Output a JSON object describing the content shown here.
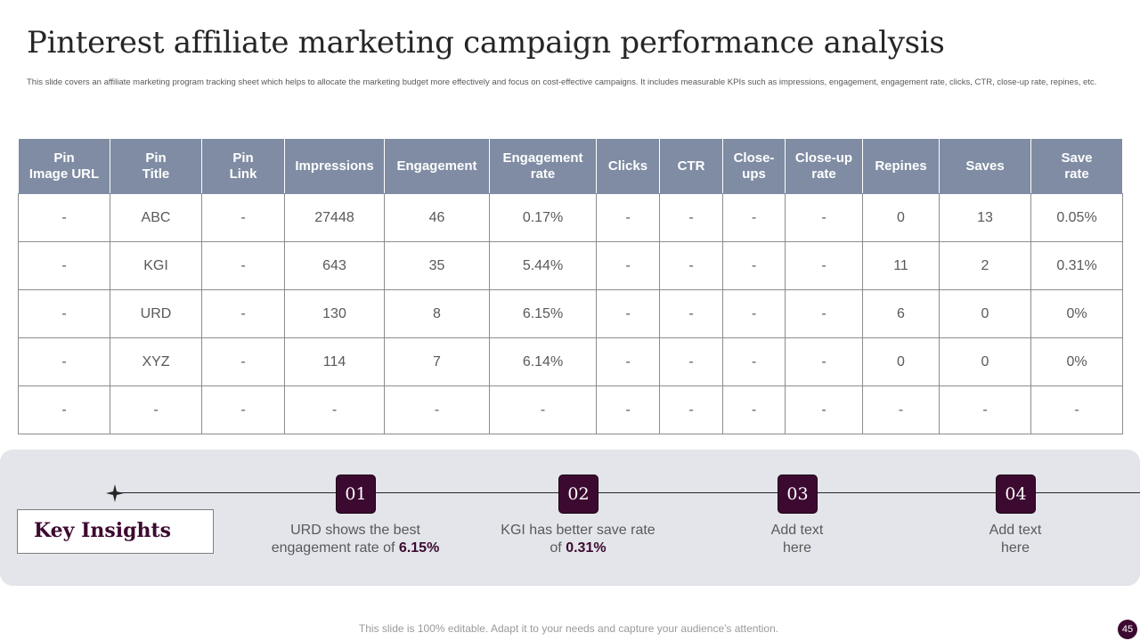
{
  "slide": {
    "title": "Pinterest affiliate marketing campaign performance analysis",
    "subtitle": "This slide covers an affiliate marketing program tracking sheet which helps to allocate the marketing budget more effectively and focus on cost-effective campaigns. It includes measurable KPIs  such as impressions, engagement,  engagement rate, clicks, CTR,  close-up rate, repines, etc."
  },
  "table": {
    "headers": [
      "Pin\nImage URL",
      "Pin\nTitle",
      "Pin\nLink",
      "Impressions",
      "Engagement",
      "Engagement\nrate",
      "Clicks",
      "CTR",
      "Close-\nups",
      "Close-up\nrate",
      "Repines",
      "Saves",
      "Save\nrate"
    ],
    "rows": [
      [
        "-",
        "ABC",
        "-",
        "27448",
        "46",
        "0.17%",
        "-",
        "-",
        "-",
        "-",
        "0",
        "13",
        "0.05%"
      ],
      [
        "-",
        "KGI",
        "-",
        "643",
        "35",
        "5.44%",
        "-",
        "-",
        "-",
        "-",
        "11",
        "2",
        "0.31%"
      ],
      [
        "-",
        "URD",
        "-",
        "130",
        "8",
        "6.15%",
        "-",
        "-",
        "-",
        "-",
        "6",
        "0",
        "0%"
      ],
      [
        "-",
        "XYZ",
        "-",
        "114",
        "7",
        "6.14%",
        "-",
        "-",
        "-",
        "-",
        "0",
        "0",
        "0%"
      ],
      [
        "-",
        "-",
        "-",
        "-",
        "-",
        "-",
        "-",
        "-",
        "-",
        "-",
        "-",
        "-",
        "-"
      ]
    ]
  },
  "insights": {
    "title": "Key Insights",
    "items": [
      {
        "number": "01",
        "text": "URD shows the best engagement rate of ",
        "highlight": "6.15%"
      },
      {
        "number": "02",
        "text": "KGI has better save rate of ",
        "highlight": "0.31%"
      },
      {
        "number": "03",
        "text": "Add text here",
        "highlight": ""
      },
      {
        "number": "04",
        "text": "Add text here",
        "highlight": ""
      }
    ]
  },
  "footer": {
    "note": "This slide is 100% editable. Adapt it to your needs and capture your audience's attention.",
    "page_number": "45"
  },
  "colors": {
    "header_fill": "#7f8ca3",
    "accent": "#3c0a30",
    "band": "#e3e5ea"
  }
}
